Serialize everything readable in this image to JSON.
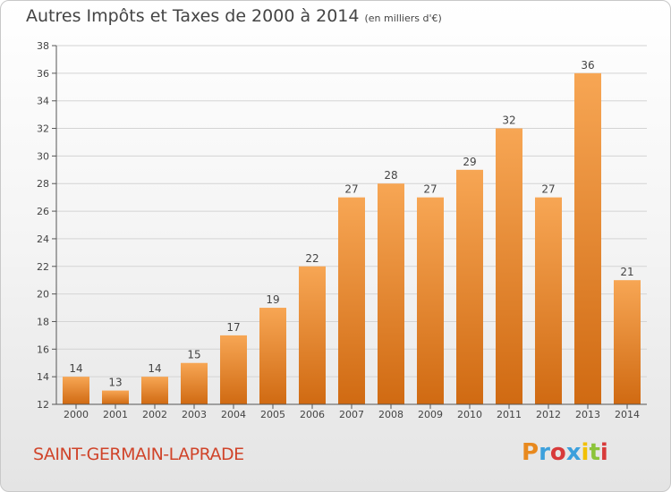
{
  "title": "Autres Impôts et Taxes de 2000 à 2014",
  "subtitle": "(en milliers d'€)",
  "city": "SAINT-GERMAIN-LAPRADE",
  "logo": "Proxiti",
  "colors": {
    "bar_top": "#f7a654",
    "bar_bottom": "#d06a12",
    "axis": "#555555",
    "grid": "#d4d4d4",
    "city_text": "#d0442a"
  },
  "chart_data": {
    "type": "bar",
    "categories": [
      "2000",
      "2001",
      "2002",
      "2003",
      "2004",
      "2005",
      "2006",
      "2007",
      "2008",
      "2009",
      "2010",
      "2011",
      "2012",
      "2013",
      "2014"
    ],
    "values": [
      14,
      13,
      14,
      15,
      17,
      19,
      22,
      27,
      28,
      27,
      29,
      32,
      27,
      36,
      21
    ],
    "data_labels": [
      "14",
      "13",
      "14",
      "15",
      "17",
      "19",
      "22",
      "27",
      "28",
      "27",
      "29",
      "32",
      "27",
      "36",
      "21"
    ],
    "ylim": [
      12,
      38
    ],
    "yticks": [
      12,
      14,
      16,
      18,
      20,
      22,
      24,
      26,
      28,
      30,
      32,
      34,
      36,
      38
    ],
    "grid": true,
    "xlabel": "",
    "ylabel": ""
  }
}
